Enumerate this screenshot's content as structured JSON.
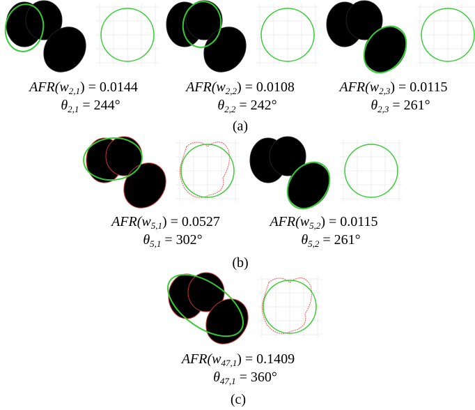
{
  "panels": [
    {
      "label": "(a)",
      "items": [
        {
          "afr": {
            "lhs": "AFR(w",
            "sub": "2,1",
            "rhs": ") = 0.0144"
          },
          "theta": {
            "lhs": "θ",
            "sub": "2,1",
            "rhs": " = 244°"
          }
        },
        {
          "afr": {
            "lhs": "AFR(w",
            "sub": "2,2",
            "rhs": ") = 0.0108"
          },
          "theta": {
            "lhs": "θ",
            "sub": "2,2",
            "rhs": " = 242°"
          }
        },
        {
          "afr": {
            "lhs": "AFR(w",
            "sub": "2,3",
            "rhs": ") = 0.0115"
          },
          "theta": {
            "lhs": "θ",
            "sub": "2,3",
            "rhs": " = 261°"
          }
        }
      ]
    },
    {
      "label": "(b)",
      "items": [
        {
          "afr": {
            "lhs": "AFR(w",
            "sub": "5,1",
            "rhs": ") = 0.0527"
          },
          "theta": {
            "lhs": "θ",
            "sub": "5,1",
            "rhs": " = 302°"
          }
        },
        {
          "afr": {
            "lhs": "AFR(w",
            "sub": "5,2",
            "rhs": ") = 0.0115"
          },
          "theta": {
            "lhs": "θ",
            "sub": "5,2",
            "rhs": " = 261°"
          }
        }
      ]
    },
    {
      "label": "(c)",
      "items": [
        {
          "afr": {
            "lhs": "AFR(w",
            "sub": "47,1",
            "rhs": ") = 0.1409"
          },
          "theta": {
            "lhs": "θ",
            "sub": "47,1",
            "rhs": " = 360°"
          }
        }
      ]
    }
  ]
}
